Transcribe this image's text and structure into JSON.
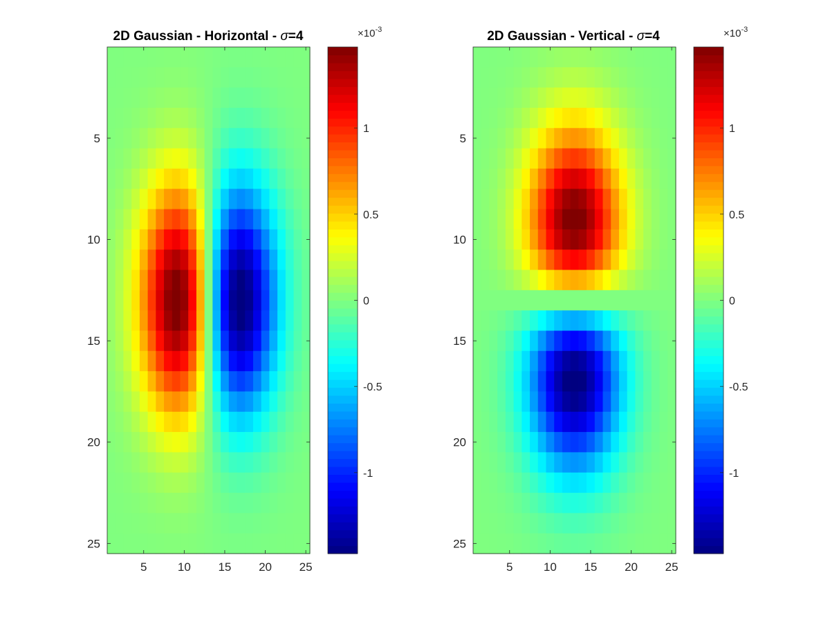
{
  "chart_data": [
    {
      "type": "heatmap",
      "title_prefix": "2D Gaussian - Horizontal - ",
      "title_sigma": "σ",
      "title_suffix": "=4",
      "grid_size": 25,
      "sigma": 4,
      "orientation": "horizontal",
      "colormap": "jet",
      "x_ticks": [
        "5",
        "10",
        "15",
        "20",
        "25"
      ],
      "y_ticks": [
        "5",
        "10",
        "15",
        "20",
        "25"
      ],
      "y_axis_reversed": true,
      "colorbar": {
        "range": [
          -0.00147,
          0.00147
        ],
        "ticks": [
          "-1",
          "-0.5",
          "0",
          "0.5",
          "1"
        ],
        "exponent_base": "×10",
        "exponent": "-3"
      }
    },
    {
      "type": "heatmap",
      "title_prefix": "2D Gaussian - Vertical - ",
      "title_sigma": "σ",
      "title_suffix": "=4",
      "grid_size": 25,
      "sigma": 4,
      "orientation": "vertical",
      "colormap": "jet",
      "x_ticks": [
        "5",
        "10",
        "15",
        "20",
        "25"
      ],
      "y_ticks": [
        "5",
        "10",
        "15",
        "20",
        "25"
      ],
      "y_axis_reversed": true,
      "colorbar": {
        "range": [
          -0.00147,
          0.00147
        ],
        "ticks": [
          "-1",
          "-0.5",
          "0",
          "0.5",
          "1"
        ],
        "exponent_base": "×10",
        "exponent": "-3"
      }
    }
  ]
}
